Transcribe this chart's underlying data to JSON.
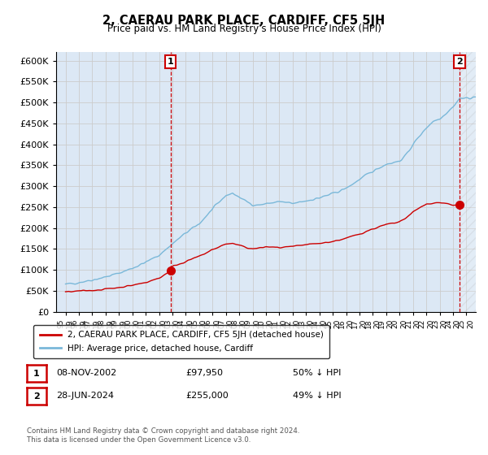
{
  "title": "2, CAERAU PARK PLACE, CARDIFF, CF5 5JH",
  "subtitle": "Price paid vs. HM Land Registry's House Price Index (HPI)",
  "ylim": [
    0,
    620000
  ],
  "yticks": [
    0,
    50000,
    100000,
    150000,
    200000,
    250000,
    300000,
    350000,
    400000,
    450000,
    500000,
    550000,
    600000
  ],
  "hpi_color": "#7ab8d9",
  "price_color": "#cc0000",
  "grid_color": "#cccccc",
  "background_color": "#ffffff",
  "plot_bg_color": "#dce8f5",
  "legend_label_red": "2, CAERAU PARK PLACE, CARDIFF, CF5 5JH (detached house)",
  "legend_label_blue": "HPI: Average price, detached house, Cardiff",
  "table_row1": [
    "1",
    "08-NOV-2002",
    "£97,950",
    "50% ↓ HPI"
  ],
  "table_row2": [
    "2",
    "28-JUN-2024",
    "£255,000",
    "49% ↓ HPI"
  ],
  "footer": "Contains HM Land Registry data © Crown copyright and database right 2024.\nThis data is licensed under the Open Government Licence v3.0.",
  "point1_year": 2002.86,
  "point1_value": 97950,
  "point2_year": 2024.49,
  "point2_value": 255000,
  "vline1_year": 2002.86,
  "vline2_year": 2024.49,
  "hpi_breakpoints": [
    1995,
    1996,
    1997,
    1998,
    1999,
    2000,
    2001,
    2002,
    2003,
    2004,
    2005,
    2006,
    2007,
    2007.5,
    2008,
    2008.5,
    2009,
    2009.5,
    2010,
    2011,
    2012,
    2013,
    2014,
    2015,
    2016,
    2017,
    2018,
    2019,
    2020,
    2020.5,
    2021,
    2021.5,
    2022,
    2022.5,
    2023,
    2023.5,
    2024,
    2024.5,
    2025,
    2026,
    2027
  ],
  "hpi_values": [
    65000,
    70000,
    76000,
    83000,
    92000,
    104000,
    118000,
    135000,
    162000,
    188000,
    210000,
    245000,
    278000,
    283000,
    274000,
    264000,
    256000,
    255000,
    258000,
    263000,
    258000,
    265000,
    272000,
    282000,
    295000,
    316000,
    336000,
    353000,
    360000,
    375000,
    400000,
    420000,
    440000,
    455000,
    462000,
    475000,
    490000,
    510000,
    510000,
    515000,
    520000
  ],
  "price_breakpoints": [
    1995,
    1996,
    1997,
    1998,
    1999,
    2000,
    2001,
    2002,
    2002.86,
    2003,
    2004,
    2005,
    2006,
    2007,
    2007.5,
    2008,
    2008.5,
    2009,
    2009.5,
    2010,
    2011,
    2012,
    2013,
    2014,
    2015,
    2016,
    2017,
    2018,
    2019,
    2020,
    2020.5,
    2021,
    2021.5,
    2022,
    2022.5,
    2023,
    2023.5,
    2024,
    2024.49
  ],
  "price_values": [
    47000,
    49000,
    51000,
    54000,
    58000,
    63000,
    70000,
    80000,
    97950,
    108000,
    120000,
    132000,
    148000,
    162000,
    163000,
    158000,
    154000,
    150000,
    152000,
    155000,
    153000,
    155000,
    160000,
    163000,
    168000,
    175000,
    186000,
    198000,
    208000,
    214000,
    225000,
    238000,
    248000,
    257000,
    260000,
    261000,
    258000,
    254000,
    255000
  ],
  "xlim_left": 1994.3,
  "xlim_right": 2025.7,
  "hatch_start": 2024.49,
  "hatch_end": 2025.7,
  "xtick_years": [
    1995,
    1996,
    1997,
    1998,
    1999,
    2000,
    2001,
    2002,
    2003,
    2004,
    2005,
    2006,
    2007,
    2008,
    2009,
    2010,
    2011,
    2012,
    2013,
    2014,
    2015,
    2016,
    2017,
    2018,
    2019,
    2020,
    2021,
    2022,
    2023,
    2024,
    2025
  ]
}
